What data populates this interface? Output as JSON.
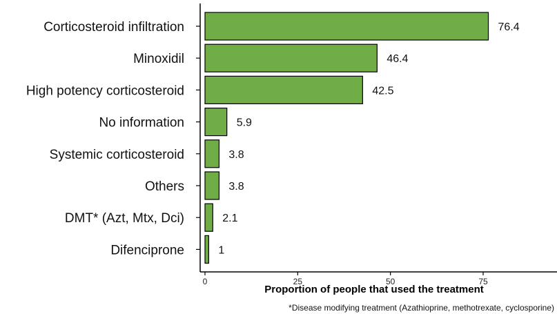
{
  "chart_data": {
    "type": "bar",
    "orientation": "horizontal",
    "categories": [
      "Corticosteroid infiltration",
      "Minoxidil",
      "High potency corticosteroid",
      "No information",
      "Systemic corticosteroid",
      "Others",
      "DMT* (Azt, Mtx, Dci)",
      "Difenciprone"
    ],
    "values": [
      76.4,
      46.4,
      42.5,
      5.9,
      3.8,
      3.8,
      2.1,
      1
    ],
    "value_labels": [
      "76.4",
      "46.4",
      "42.5",
      "5.9",
      "3.8",
      "3.8",
      "2.1",
      "1"
    ],
    "xlabel": "Proportion of people that used the treatment",
    "ylabel": "",
    "xlim": [
      0,
      95
    ],
    "xticks": [
      0,
      25,
      50,
      75
    ],
    "xtick_labels": [
      "0",
      "25",
      "50",
      "75"
    ],
    "grid": false,
    "legend": "none",
    "bar_color": "#70ad47",
    "bar_edge_color": "#000000",
    "footnote": "*Disease modifying treatment (Azathioprine, methotrexate, cyclosporine)"
  }
}
